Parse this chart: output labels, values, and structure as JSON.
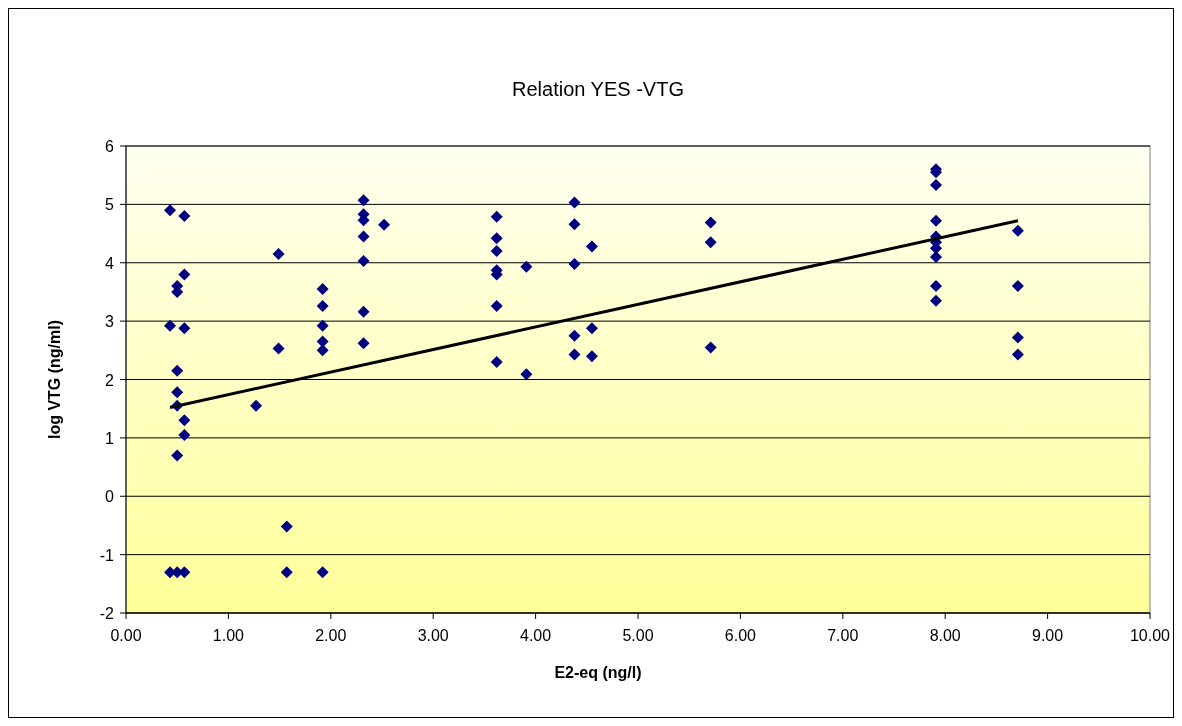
{
  "chart_data": {
    "type": "scatter",
    "title": "Relation YES -VTG",
    "xlabel": "E2-eq (ng/l)",
    "ylabel": "log VTG (ng/ml)",
    "xlim": [
      0,
      10
    ],
    "ylim": [
      -2,
      6
    ],
    "xticks": [
      {
        "value": 0,
        "label": "0.00"
      },
      {
        "value": 1,
        "label": "1.00"
      },
      {
        "value": 2,
        "label": "2.00"
      },
      {
        "value": 3,
        "label": "3.00"
      },
      {
        "value": 4,
        "label": "4.00"
      },
      {
        "value": 5,
        "label": "5.00"
      },
      {
        "value": 6,
        "label": "6.00"
      },
      {
        "value": 7,
        "label": "7.00"
      },
      {
        "value": 8,
        "label": "8.00"
      },
      {
        "value": 9,
        "label": "9.00"
      },
      {
        "value": 10,
        "label": "10.00"
      }
    ],
    "yticks": [
      -2,
      -1,
      0,
      1,
      2,
      3,
      4,
      5,
      6
    ],
    "grid": "y",
    "series": [
      {
        "color": "#000080",
        "marker": "diamond",
        "x": [
          0.43,
          0.43,
          0.43,
          0.5,
          0.5,
          0.5,
          0.5,
          0.5,
          0.5,
          0.5,
          0.57,
          0.57,
          0.57,
          0.57,
          0.57,
          0.57,
          1.27,
          1.49,
          1.49,
          1.57,
          1.57,
          1.92,
          1.92,
          1.92,
          1.92,
          1.92,
          1.92,
          2.32,
          2.32,
          2.32,
          2.32,
          2.32,
          2.32,
          2.32,
          2.52,
          3.62,
          3.62,
          3.62,
          3.62,
          3.62,
          3.62,
          3.62,
          3.91,
          3.91,
          4.38,
          4.38,
          4.38,
          4.38,
          4.38,
          4.55,
          4.55,
          4.55,
          5.71,
          5.71,
          5.71,
          7.91,
          7.91,
          7.91,
          7.91,
          7.91,
          7.91,
          7.91,
          7.91,
          7.91,
          7.91,
          8.71,
          8.71,
          8.71,
          8.71
        ],
        "values": [
          4.9,
          2.92,
          -1.3,
          3.6,
          3.5,
          2.15,
          1.78,
          1.55,
          0.7,
          -1.3,
          4.8,
          3.8,
          2.88,
          1.3,
          1.05,
          -1.3,
          1.55,
          4.15,
          2.53,
          -0.52,
          -1.3,
          3.55,
          3.26,
          2.92,
          2.65,
          2.5,
          -1.3,
          5.07,
          4.83,
          4.73,
          4.45,
          4.03,
          3.16,
          2.62,
          4.65,
          4.79,
          4.42,
          4.2,
          3.87,
          3.8,
          3.26,
          2.3,
          3.93,
          2.09,
          5.03,
          4.66,
          3.98,
          2.75,
          2.43,
          4.28,
          2.88,
          2.4,
          4.69,
          4.35,
          2.55,
          5.6,
          5.55,
          5.33,
          4.72,
          4.45,
          4.35,
          4.25,
          4.1,
          3.6,
          3.35,
          4.55,
          3.6,
          2.72,
          2.43
        ]
      },
      {
        "type": "line",
        "color": "#000000",
        "marker": "none",
        "line_style": "solid",
        "x": [
          0.43,
          8.71
        ],
        "values": [
          1.52,
          4.72
        ]
      }
    ]
  }
}
